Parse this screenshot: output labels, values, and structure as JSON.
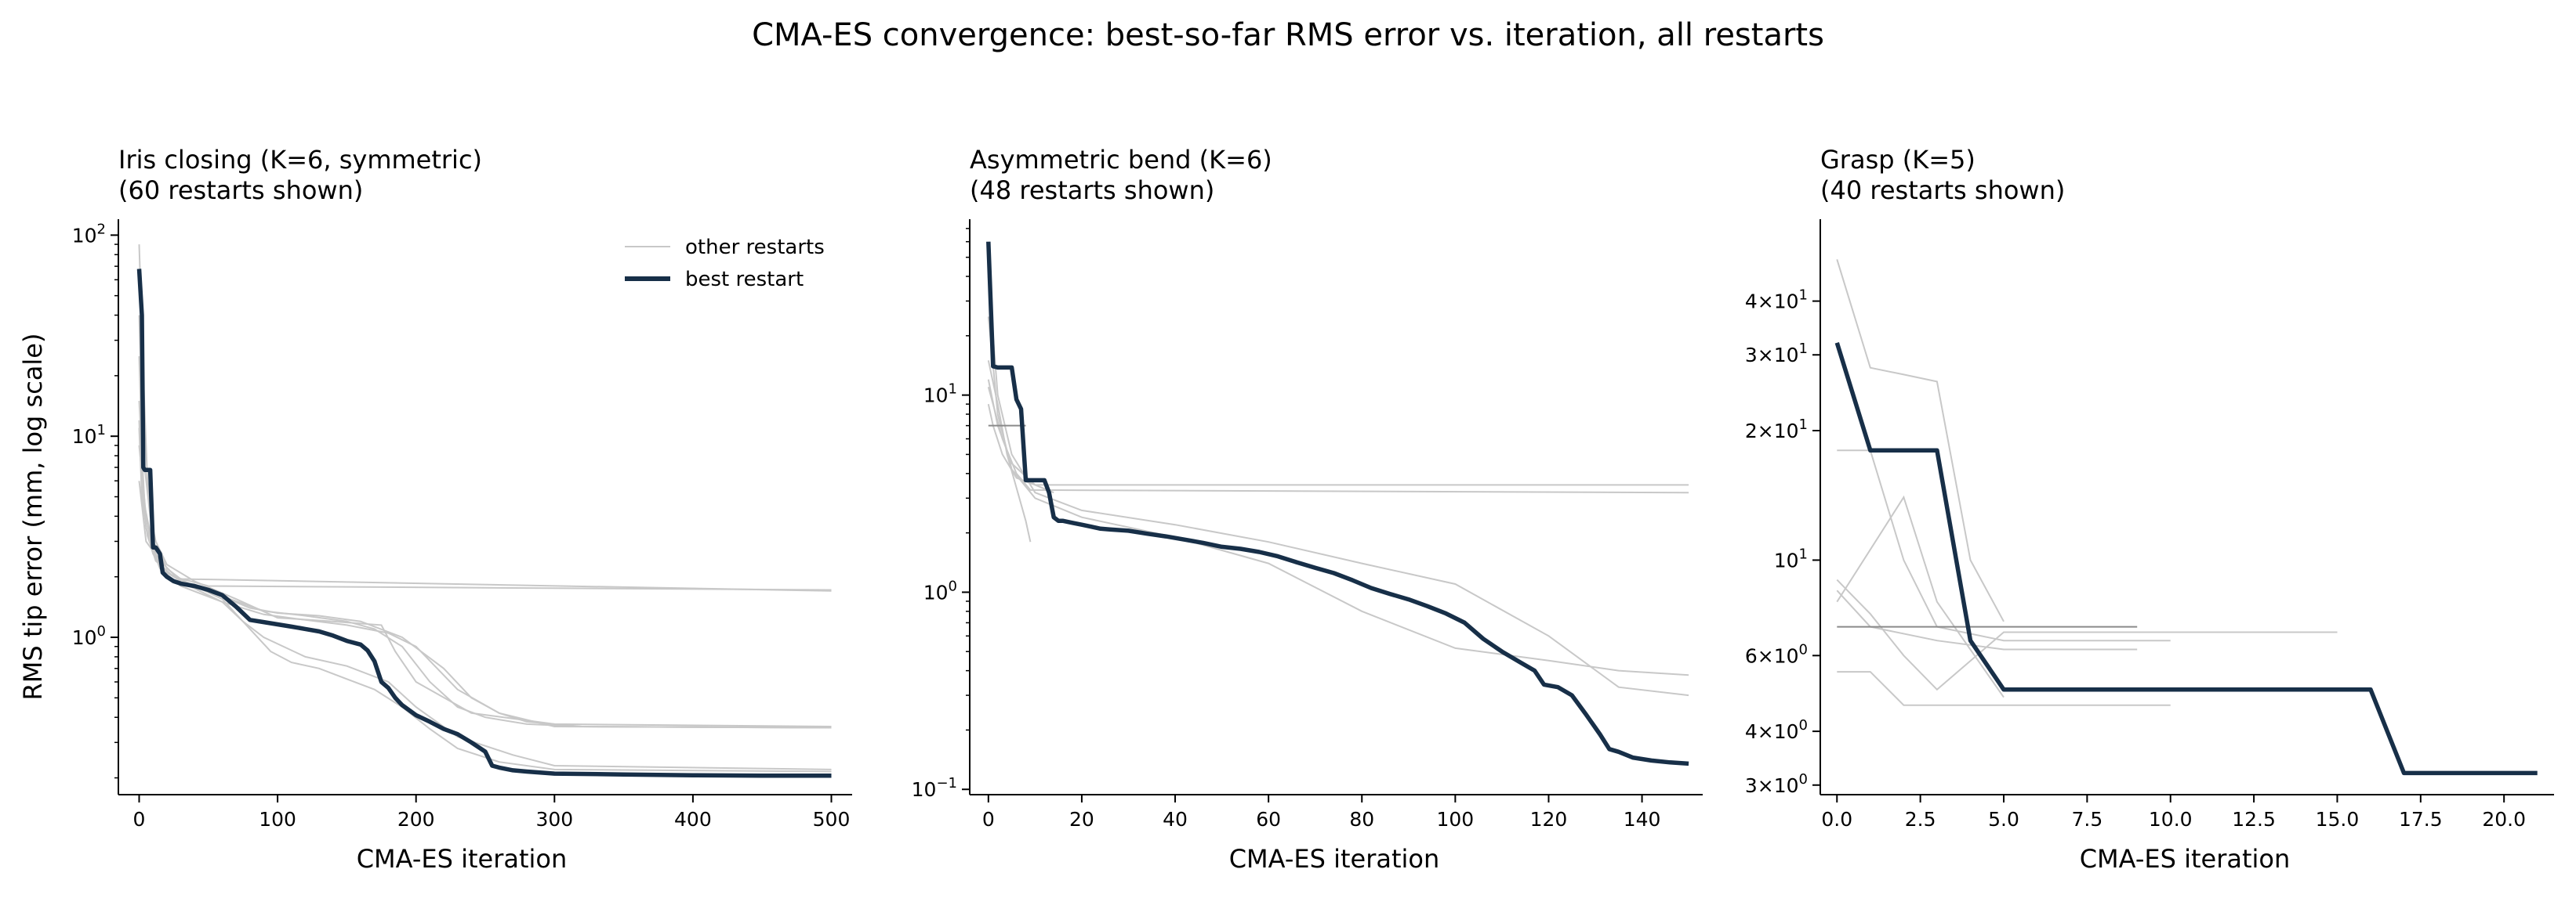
{
  "figure": {
    "title": "CMA-ES convergence: best-so-far RMS error vs. iteration, all restarts",
    "ylabel": "RMS tip error (mm, log scale)"
  },
  "colors": {
    "best": "#172f48",
    "other": "#c8c8c8",
    "other_dark": "#8a8a8a",
    "axis": "#000000"
  },
  "legend": {
    "other": "other restarts",
    "best": "best restart"
  },
  "chart_data": [
    {
      "type": "line",
      "title_line1": "Iris closing (K=6, symmetric)",
      "title_line2": "(60 restarts shown)",
      "xlabel": "CMA-ES iteration",
      "yscale": "log",
      "xlim": [
        -15,
        515
      ],
      "ylim": [
        0.165,
        120
      ],
      "xticks": [
        0,
        100,
        200,
        300,
        400,
        500
      ],
      "xtick_labels": [
        "0",
        "100",
        "200",
        "300",
        "400",
        "500"
      ],
      "yticks": [
        1,
        10,
        100
      ],
      "ytick_labels": [
        "10^0",
        "10^1",
        "10^2"
      ],
      "ytick_minor": true,
      "legend_position": "top-right",
      "best": {
        "x": [
          0,
          2,
          3,
          4,
          5,
          8,
          10,
          12,
          15,
          17,
          20,
          25,
          30,
          40,
          50,
          60,
          70,
          80,
          90,
          100,
          110,
          120,
          130,
          140,
          150,
          160,
          165,
          170,
          175,
          180,
          185,
          190,
          200,
          210,
          220,
          230,
          240,
          250,
          255,
          260,
          270,
          280,
          300,
          350,
          400,
          450,
          500
        ],
        "y": [
          68,
          40,
          7,
          6.8,
          6.8,
          6.8,
          2.8,
          2.8,
          2.6,
          2.1,
          2.0,
          1.9,
          1.85,
          1.8,
          1.72,
          1.62,
          1.42,
          1.22,
          1.19,
          1.16,
          1.13,
          1.1,
          1.07,
          1.02,
          0.96,
          0.92,
          0.86,
          0.76,
          0.6,
          0.56,
          0.5,
          0.46,
          0.41,
          0.38,
          0.35,
          0.33,
          0.3,
          0.27,
          0.23,
          0.225,
          0.218,
          0.215,
          0.21,
          0.208,
          0.206,
          0.205,
          0.205
        ]
      },
      "others": [
        {
          "x": [
            0,
            3,
            6,
            10,
            15,
            20,
            30,
            500
          ],
          "y": [
            90,
            20,
            6,
            3,
            2.6,
            2.2,
            1.95,
            1.7
          ]
        },
        {
          "x": [
            0,
            2,
            5,
            10,
            20,
            30,
            50,
            80,
            100,
            130,
            160,
            190,
            220,
            240,
            260,
            280,
            320,
            500
          ],
          "y": [
            12,
            6,
            3.5,
            2.6,
            2.1,
            1.9,
            1.7,
            1.4,
            1.32,
            1.28,
            1.2,
            1.0,
            0.7,
            0.5,
            0.42,
            0.38,
            0.36,
            0.355
          ]
        },
        {
          "x": [
            0,
            3,
            8,
            15,
            30,
            60,
            90,
            120,
            150,
            180,
            200,
            230,
            260,
            300,
            500
          ],
          "y": [
            25,
            5,
            3,
            2.2,
            1.8,
            1.5,
            1.3,
            1.22,
            1.15,
            1.05,
            0.9,
            0.55,
            0.42,
            0.36,
            0.355
          ]
        },
        {
          "x": [
            0,
            5,
            10,
            20,
            40,
            60,
            80,
            95,
            110,
            130,
            150,
            170,
            190,
            210,
            230,
            260,
            300,
            500
          ],
          "y": [
            9,
            4,
            2.7,
            2.1,
            1.8,
            1.55,
            1.1,
            0.85,
            0.75,
            0.7,
            0.62,
            0.55,
            0.45,
            0.35,
            0.28,
            0.24,
            0.22,
            0.215
          ]
        },
        {
          "x": [
            0,
            4,
            10,
            20,
            40,
            60,
            75,
            90,
            120,
            150,
            180,
            200,
            230,
            270,
            300,
            500
          ],
          "y": [
            15,
            4.5,
            2.8,
            2.0,
            1.75,
            1.5,
            1.2,
            1.0,
            0.8,
            0.72,
            0.6,
            0.45,
            0.32,
            0.26,
            0.23,
            0.22
          ]
        },
        {
          "x": [
            0,
            5,
            15,
            30,
            60,
            90,
            120,
            150,
            170,
            190,
            210,
            230,
            250,
            280,
            320,
            500
          ],
          "y": [
            6,
            3,
            2.4,
            1.9,
            1.6,
            1.35,
            1.28,
            1.2,
            1.1,
            0.9,
            0.6,
            0.45,
            0.4,
            0.37,
            0.36,
            0.355
          ]
        },
        {
          "x": [
            0,
            3,
            8,
            12,
            20,
            40,
            70,
            100,
            140,
            175,
            185,
            200,
            240,
            300,
            500
          ],
          "y": [
            40,
            8,
            4,
            3,
            2.3,
            1.9,
            1.55,
            1.25,
            1.2,
            1.15,
            0.85,
            0.6,
            0.42,
            0.37,
            0.36
          ]
        },
        {
          "x": [
            0,
            2,
            6,
            12,
            25,
            50,
            500
          ],
          "y": [
            11,
            5,
            3.2,
            2.4,
            2.0,
            1.8,
            1.72
          ]
        }
      ]
    },
    {
      "type": "line",
      "title_line1": "Asymmetric bend (K=6)",
      "title_line2": "(48 restarts shown)",
      "xlabel": "CMA-ES iteration",
      "yscale": "log",
      "xlim": [
        -4,
        153
      ],
      "ylim": [
        0.094,
        78
      ],
      "xticks": [
        0,
        20,
        40,
        60,
        80,
        100,
        120,
        140
      ],
      "xtick_labels": [
        "0",
        "20",
        "40",
        "60",
        "80",
        "100",
        "120",
        "140"
      ],
      "yticks": [
        0.1,
        1,
        10
      ],
      "ytick_labels": [
        "10^-1",
        "10^0",
        "10^1"
      ],
      "ytick_minor": true,
      "best": {
        "x": [
          0,
          1,
          2,
          3,
          4,
          5,
          6,
          7,
          8,
          9,
          10,
          11,
          12,
          13,
          14,
          15,
          16,
          18,
          20,
          22,
          24,
          26,
          30,
          34,
          38,
          42,
          46,
          50,
          54,
          58,
          62,
          66,
          70,
          74,
          78,
          82,
          86,
          90,
          94,
          98,
          102,
          106,
          110,
          114,
          117,
          119,
          122,
          125,
          128,
          131,
          133,
          135,
          138,
          142,
          146,
          150
        ],
        "y": [
          60,
          14,
          13.8,
          13.8,
          13.8,
          13.8,
          9.5,
          8.5,
          3.7,
          3.7,
          3.7,
          3.7,
          3.7,
          3.2,
          2.4,
          2.3,
          2.3,
          2.25,
          2.2,
          2.15,
          2.1,
          2.08,
          2.05,
          1.98,
          1.92,
          1.85,
          1.78,
          1.7,
          1.66,
          1.6,
          1.52,
          1.42,
          1.33,
          1.25,
          1.15,
          1.05,
          0.98,
          0.92,
          0.85,
          0.78,
          0.7,
          0.58,
          0.5,
          0.44,
          0.4,
          0.34,
          0.33,
          0.3,
          0.24,
          0.19,
          0.16,
          0.155,
          0.145,
          0.14,
          0.137,
          0.135
        ]
      },
      "others": [
        {
          "x": [
            0,
            2,
            5,
            10,
            20,
            40,
            60,
            80,
            100,
            120,
            135,
            150
          ],
          "y": [
            40,
            10,
            5,
            3.2,
            2.6,
            2.2,
            1.8,
            1.4,
            1.1,
            0.6,
            0.33,
            0.3
          ]
        },
        {
          "x": [
            0,
            2,
            5,
            10,
            20,
            40,
            60,
            80,
            100,
            120,
            135,
            150
          ],
          "y": [
            25,
            8,
            4.2,
            3,
            2.4,
            1.9,
            1.4,
            0.8,
            0.52,
            0.45,
            0.4,
            0.38
          ]
        },
        {
          "x": [
            0,
            1,
            3,
            6,
            10,
            150
          ],
          "y": [
            9,
            7,
            5,
            3.8,
            3.5,
            3.5
          ]
        },
        {
          "x": [
            0,
            3,
            6,
            9,
            150
          ],
          "y": [
            11,
            6,
            4,
            3.3,
            3.2
          ]
        },
        {
          "x": [
            0,
            2,
            4,
            8,
            9
          ],
          "y": [
            15,
            9,
            5,
            2.3,
            1.8
          ]
        },
        {
          "x": [
            0,
            2,
            5,
            10,
            14
          ],
          "y": [
            12,
            7,
            4.5,
            3.5,
            3.2
          ]
        }
      ],
      "others_dark": [
        {
          "x": [
            0,
            8
          ],
          "y": [
            7,
            7
          ]
        }
      ]
    },
    {
      "type": "line",
      "title_line1": "Grasp (K=5)",
      "title_line2": "(40 restarts shown)",
      "xlabel": "CMA-ES iteration",
      "yscale": "log",
      "xlim": [
        -0.5,
        21.5
      ],
      "ylim": [
        2.85,
        62
      ],
      "xticks": [
        0,
        2.5,
        5,
        7.5,
        10,
        12.5,
        15,
        17.5,
        20
      ],
      "xtick_labels": [
        "0.0",
        "2.5",
        "5.0",
        "7.5",
        "10.0",
        "12.5",
        "15.0",
        "17.5",
        "20.0"
      ],
      "yticks": [
        3,
        4,
        6,
        10,
        20,
        30,
        40
      ],
      "ytick_labels": [
        "3×10^0",
        "4×10^0",
        "6×10^0",
        "10^1",
        "2×10^1",
        "3×10^1",
        "4×10^1"
      ],
      "ytick_minor": false,
      "best": {
        "x": [
          0,
          1,
          2,
          3,
          4,
          5,
          6,
          10,
          15,
          16,
          17,
          18,
          21
        ],
        "y": [
          32,
          18,
          18,
          18,
          6.5,
          5,
          5,
          5,
          5,
          5,
          3.2,
          3.2,
          3.2
        ]
      },
      "others": [
        {
          "x": [
            0,
            1,
            2,
            3,
            4,
            5
          ],
          "y": [
            50,
            28,
            27,
            26,
            10,
            7.2
          ]
        },
        {
          "x": [
            0,
            1,
            2,
            3,
            5,
            15
          ],
          "y": [
            9,
            7.5,
            6,
            5,
            6.8,
            6.8
          ]
        },
        {
          "x": [
            0,
            1,
            2,
            3,
            10
          ],
          "y": [
            5.5,
            5.5,
            4.6,
            4.6,
            4.6
          ]
        },
        {
          "x": [
            0,
            1,
            3,
            5,
            9
          ],
          "y": [
            8.5,
            7,
            6.5,
            6.2,
            6.2
          ]
        },
        {
          "x": [
            0,
            2,
            3,
            5
          ],
          "y": [
            8,
            14,
            8,
            4.8
          ]
        },
        {
          "x": [
            0,
            1,
            2,
            3,
            5,
            7,
            10
          ],
          "y": [
            18,
            18,
            10,
            7,
            6.5,
            6.5,
            6.5
          ]
        }
      ],
      "others_dark": [
        {
          "x": [
            0,
            9
          ],
          "y": [
            7,
            7
          ]
        }
      ]
    }
  ]
}
